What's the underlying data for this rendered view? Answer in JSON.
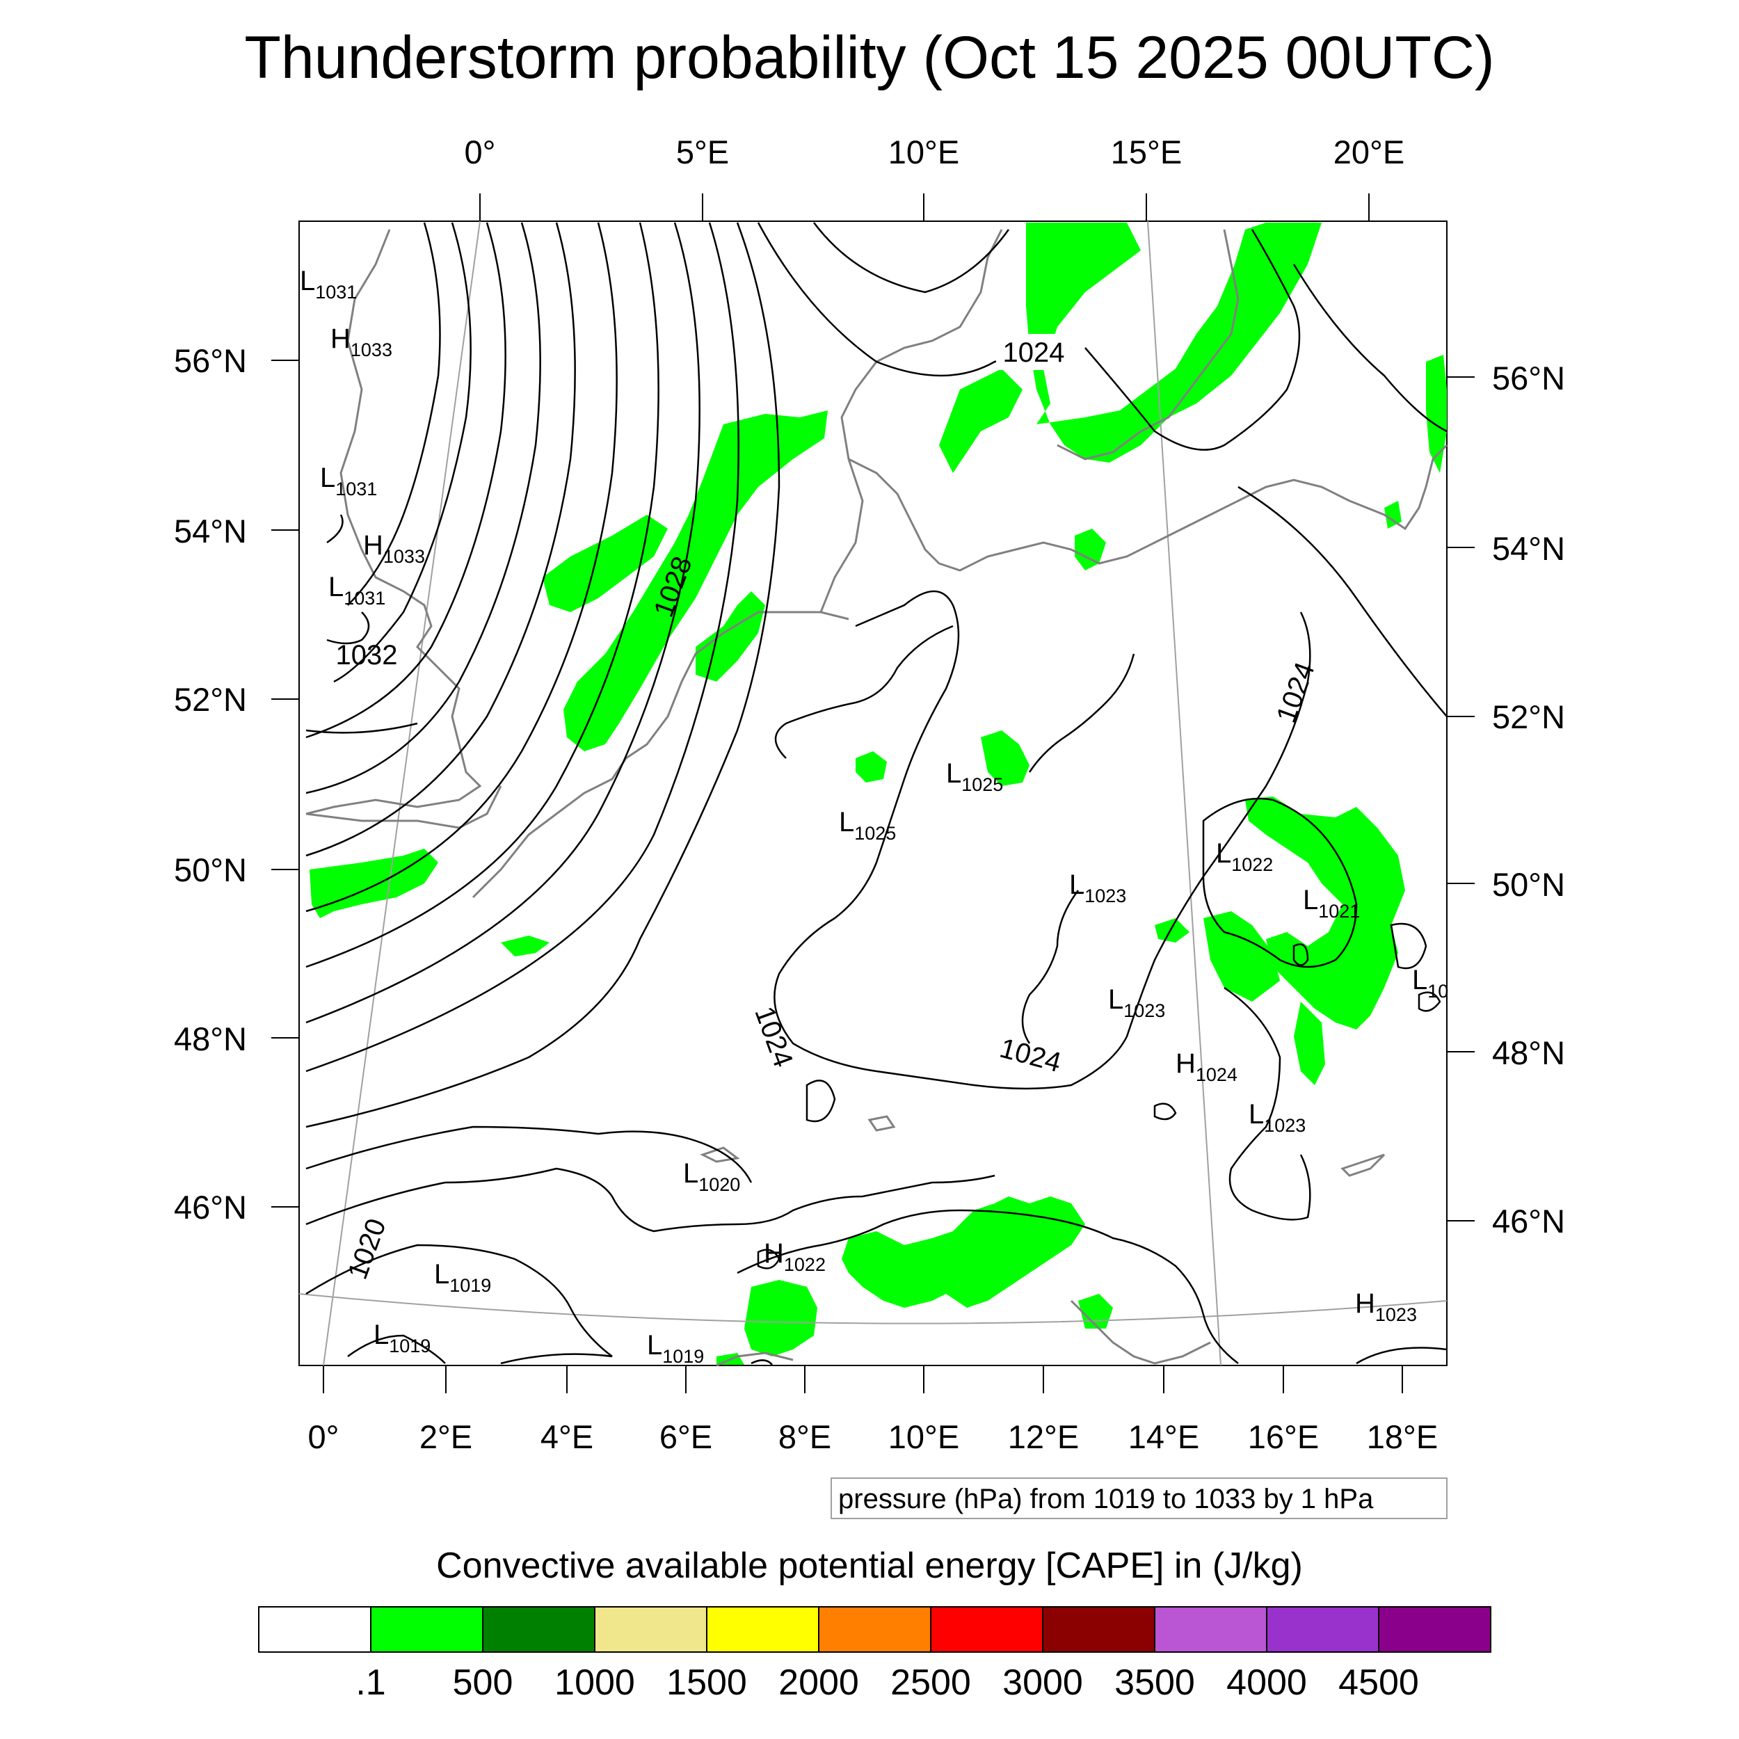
{
  "title": "Thunderstorm probability (Oct 15 2025 00UTC)",
  "top_lon_labels": [
    "0°",
    "5°E",
    "10°E",
    "15°E",
    "20°E"
  ],
  "bottom_lon_labels": [
    "0°",
    "2°E",
    "4°E",
    "6°E",
    "8°E",
    "10°E",
    "12°E",
    "14°E",
    "16°E",
    "18°E"
  ],
  "left_lat_labels": [
    "56°N",
    "54°N",
    "52°N",
    "50°N",
    "48°N",
    "46°N"
  ],
  "right_lat_labels": [
    "56°N",
    "54°N",
    "52°N",
    "50°N",
    "48°N",
    "46°N"
  ],
  "contour_labels": [
    "1024",
    "1028",
    "1032",
    "1024",
    "1024",
    "1024",
    "1020"
  ],
  "pressure_centers": [
    {
      "type": "L",
      "value": "1031"
    },
    {
      "type": "H",
      "value": "1033"
    },
    {
      "type": "L",
      "value": "1031"
    },
    {
      "type": "H",
      "value": "1033"
    },
    {
      "type": "L",
      "value": "1031"
    },
    {
      "type": "L",
      "value": "1025"
    },
    {
      "type": "L",
      "value": "1025"
    },
    {
      "type": "L",
      "value": "1023"
    },
    {
      "type": "L",
      "value": "1022"
    },
    {
      "type": "L",
      "value": "1021"
    },
    {
      "type": "L",
      "value": "10"
    },
    {
      "type": "L",
      "value": "1023"
    },
    {
      "type": "H",
      "value": "1024"
    },
    {
      "type": "L",
      "value": "1023"
    },
    {
      "type": "L",
      "value": "1020"
    },
    {
      "type": "H",
      "value": "1022"
    },
    {
      "type": "L",
      "value": "1019"
    },
    {
      "type": "L",
      "value": "1019"
    },
    {
      "type": "L",
      "value": "1019"
    },
    {
      "type": "H",
      "value": "1023"
    }
  ],
  "contour_note": "pressure (hPa) from 1019 to 1033 by 1 hPa",
  "colorbar": {
    "title": "Convective available potential energy [CAPE] in (J/kg)",
    "colors": [
      "#ffffff",
      "#00ff00",
      "#008000",
      "#f0e68c",
      "#ffff00",
      "#ff8000",
      "#ff0000",
      "#8b0000",
      "#ba55d3",
      "#9932cc",
      "#8b008b"
    ],
    "labels": [
      ".1",
      "500",
      "1000",
      "1500",
      "2000",
      "2500",
      "3000",
      "3500",
      "4000",
      "4500"
    ]
  },
  "colors": {
    "contour": "#000000",
    "coastline": "#808080",
    "graticule": "#a0a0a0",
    "cape_fill": "#00ff00"
  }
}
